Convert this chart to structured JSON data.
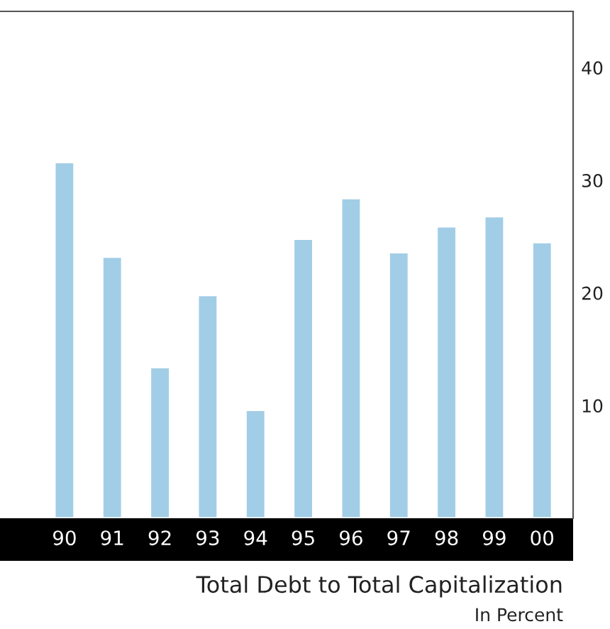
{
  "chart_data": {
    "type": "bar",
    "title": "Total Debt to Total Capitalization",
    "subtitle": "In Percent",
    "categories": [
      "90",
      "91",
      "92",
      "93",
      "94",
      "95",
      "96",
      "97",
      "98",
      "99",
      "00"
    ],
    "values": [
      31.6,
      23.2,
      13.4,
      19.8,
      9.6,
      24.8,
      28.4,
      23.6,
      25.9,
      26.8,
      24.5
    ],
    "color": "#a2cde6",
    "ylim": [
      0,
      45
    ],
    "yticks": [
      10,
      20,
      30,
      40
    ],
    "grid": false,
    "legend": false
  }
}
